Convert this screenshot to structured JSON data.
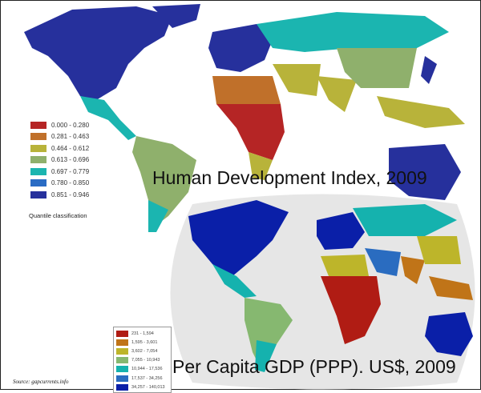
{
  "hdi_map": {
    "title": "Human Development Index, 2009",
    "legend_note": "Quantile classification",
    "legend": [
      {
        "label": "0.000 - 0.280",
        "color": "#b52525"
      },
      {
        "label": "0.281 - 0.463",
        "color": "#c0702a"
      },
      {
        "label": "0.464 - 0.612",
        "color": "#b8b33a"
      },
      {
        "label": "0.613 - 0.696",
        "color": "#8fb06c"
      },
      {
        "label": "0.697 - 0.779",
        "color": "#1bb5b0"
      },
      {
        "label": "0.780 - 0.850",
        "color": "#2a6cc4"
      },
      {
        "label": "0.851 - 0.946",
        "color": "#26309c"
      }
    ]
  },
  "gdp_map": {
    "title": "Per Capita GDP (PPP). US$, 2009",
    "legend": [
      {
        "label": "231 - 1,594",
        "color": "#b01c14"
      },
      {
        "label": "1,595 - 3,601",
        "color": "#c07418"
      },
      {
        "label": "3,602 - 7,054",
        "color": "#bdb52a"
      },
      {
        "label": "7,055 - 10,943",
        "color": "#86b870"
      },
      {
        "label": "10,944 - 17,536",
        "color": "#15b2ae"
      },
      {
        "label": "17,537 - 34,256",
        "color": "#2a6cc0"
      },
      {
        "label": "34,257 - 140,013",
        "color": "#0a1fa8"
      }
    ]
  },
  "source": "Source: gapcurrents.info"
}
